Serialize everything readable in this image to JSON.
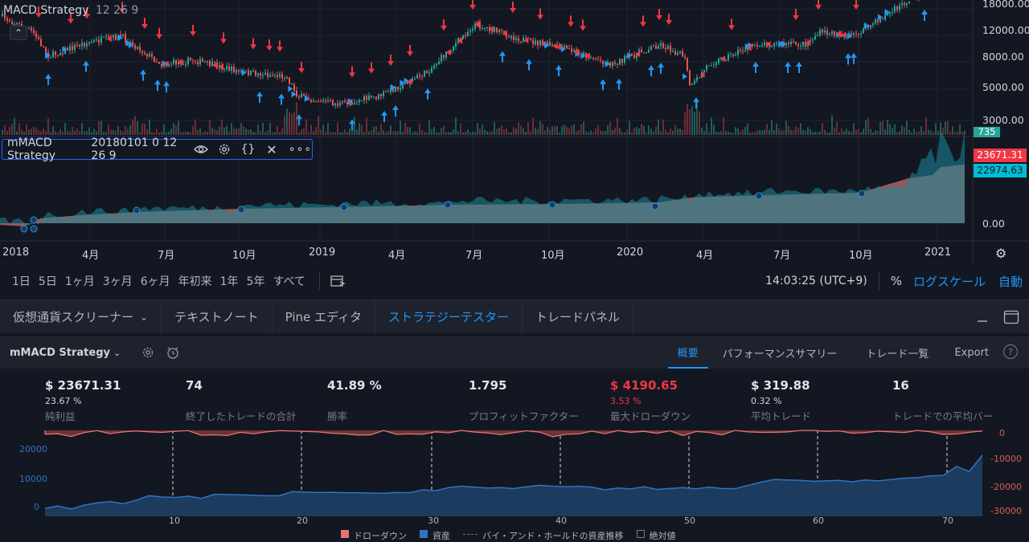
{
  "chart": {
    "symbol_title": "MACD Strategy",
    "symbol_params": "12 26 9",
    "price_labels": [
      "18000.00",
      "12000.00",
      "8000.00",
      "5000.00",
      "3000.00"
    ],
    "volume_label": "735",
    "indicator_title": "mMACD Strategy",
    "indicator_params": "20180101 0 12 26 9",
    "equity_badge_1": "23671.31",
    "equity_badge_2": "22974.63",
    "equity_axis_labels": [
      "0.00"
    ],
    "time_labels": [
      "2018",
      "4月",
      "7月",
      "10月",
      "2019",
      "4月",
      "7月",
      "10月",
      "2020",
      "4月",
      "7月",
      "10月",
      "2021"
    ],
    "colors": {
      "up": "#26a69a",
      "down": "#ef5350",
      "buy_arrow": "#2196f3",
      "sell_arrow": "#f23645",
      "equity_fill": "#a86565",
      "equity_teal": "#1b8a9a"
    }
  },
  "range_toolbar": {
    "buttons": [
      "1日",
      "5日",
      "1ヶ月",
      "3ヶ月",
      "6ヶ月",
      "年初来",
      "1年",
      "5年",
      "すべて"
    ],
    "time": "14:03:25 (UTC+9)",
    "percent": "%",
    "log_scale": "ログスケール",
    "auto": "自動"
  },
  "bottom_tabs": {
    "items": [
      "仮想通貨スクリーナー",
      "テキストノート",
      "Pine エディタ",
      "ストラテジーテスター",
      "トレードパネル"
    ],
    "active_index": 3
  },
  "strategy_bar": {
    "name": "mMACD Strategy",
    "tabs": [
      "概要",
      "パフォーマンスサマリー",
      "トレード一覧",
      "Export"
    ],
    "active_tab": "概要",
    "help": "?"
  },
  "stats": [
    {
      "value": "$ 23671.31",
      "sub": "23.67 %",
      "label": "純利益",
      "color": "#e0e3eb",
      "sub_color": "#d1d4dc"
    },
    {
      "value": "74",
      "sub": "",
      "label": "終了したトレードの合計",
      "color": "#e0e3eb",
      "sub_color": "#d1d4dc"
    },
    {
      "value": "41.89 %",
      "sub": "",
      "label": "勝率",
      "color": "#e0e3eb",
      "sub_color": "#d1d4dc"
    },
    {
      "value": "1.795",
      "sub": "",
      "label": "プロフィットファクター",
      "color": "#e0e3eb",
      "sub_color": "#d1d4dc"
    },
    {
      "value": "$ 4190.65",
      "sub": "3.53 %",
      "label": "最大ドローダウン",
      "color": "#f23645",
      "sub_color": "#f23645"
    },
    {
      "value": "$ 319.88",
      "sub": "0.32 %",
      "label": "平均トレード",
      "color": "#e0e3eb",
      "sub_color": "#d1d4dc"
    },
    {
      "value": "16",
      "sub": "",
      "label": "トレードでの平均バー",
      "color": "#e0e3eb",
      "sub_color": "#d1d4dc"
    }
  ],
  "perf_chart": {
    "left_axis": [
      "20000",
      "10000",
      "0"
    ],
    "right_axis": [
      "0",
      "-10000",
      "-20000",
      "-30000"
    ],
    "x_ticks": [
      "10",
      "20",
      "30",
      "40",
      "50",
      "60",
      "70"
    ],
    "legend": [
      "ドローダウン",
      "資産",
      "バイ・アンド・ホールドの資産推移",
      "絶対値"
    ]
  }
}
